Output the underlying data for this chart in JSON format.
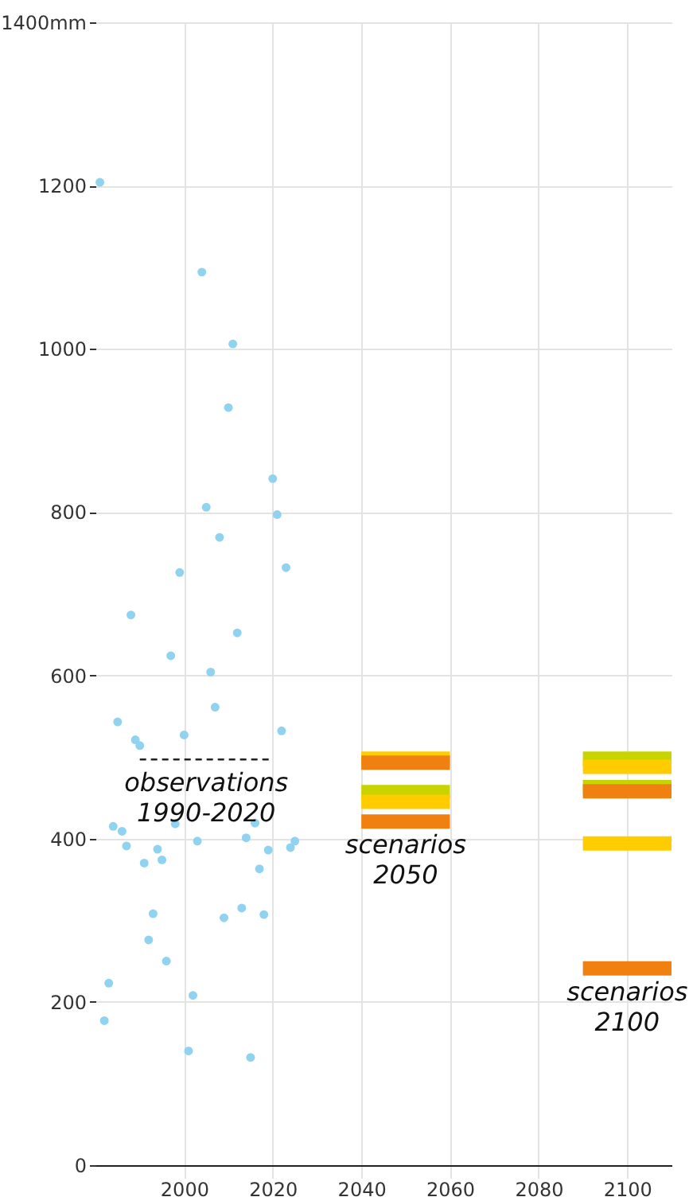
{
  "chart_data": {
    "type": "scatter",
    "xlim": [
      1980,
      2110
    ],
    "xticks": [
      2000,
      2020,
      2040,
      2060,
      2080,
      2100
    ],
    "ylim": [
      0,
      1400
    ],
    "yticks": [
      0,
      200,
      400,
      600,
      800,
      1000,
      1200,
      {
        "value": 1400,
        "label": "1400mm"
      }
    ],
    "grid": true,
    "series": [
      {
        "color": "#8fd3f0",
        "x": [
          1981,
          1982,
          1983,
          1984,
          1985,
          1986,
          1987,
          1988,
          1989,
          1990,
          1991,
          1992,
          1993,
          1994,
          1995,
          1996,
          1997,
          1998,
          1999,
          2000,
          2001,
          2002,
          2003,
          2004,
          2005,
          2006,
          2007,
          2008,
          2009,
          2010,
          2011,
          2012,
          2013,
          2014,
          2015,
          2016,
          2017,
          2018,
          2019,
          2020,
          2021,
          2022,
          2023,
          2024,
          2025
        ],
        "values": [
          1204,
          177,
          223,
          415,
          543,
          409,
          391,
          674,
          521,
          514,
          370,
          276,
          308,
          387,
          374,
          250,
          624,
          418,
          726,
          527,
          140,
          208,
          397,
          1094,
          806,
          604,
          561,
          769,
          303,
          928,
          1006,
          652,
          315,
          401,
          132,
          419,
          363,
          307,
          386,
          841,
          797,
          532,
          732,
          389,
          397
        ]
      },
      {
        "type": "line",
        "line_style": "dashed",
        "color": "#222222",
        "x": [
          1990,
          2020
        ],
        "values": [
          497,
          497
        ]
      },
      {
        "type": "line",
        "line_style": "solid",
        "color": "#ffcc00",
        "x": [
          2040,
          2060
        ],
        "values": [
          498,
          498
        ]
      },
      {
        "type": "line",
        "line_style": "solid",
        "color": "#f08010",
        "x": [
          2040,
          2060
        ],
        "values": [
          493,
          493
        ]
      },
      {
        "type": "line",
        "line_style": "solid",
        "color": "#c8d400",
        "x": [
          2040,
          2060
        ],
        "values": [
          457,
          457
        ]
      },
      {
        "type": "line",
        "line_style": "solid",
        "color": "#ffcc00",
        "x": [
          2040,
          2060
        ],
        "values": [
          445,
          445
        ]
      },
      {
        "type": "line",
        "line_style": "solid",
        "color": "#f08010",
        "x": [
          2040,
          2060
        ],
        "values": [
          421,
          421
        ]
      },
      {
        "type": "line",
        "line_style": "solid",
        "color": "#c8d400",
        "x": [
          2090,
          2110
        ],
        "values": [
          498,
          498
        ]
      },
      {
        "type": "line",
        "line_style": "solid",
        "color": "#ffcc00",
        "x": [
          2090,
          2110
        ],
        "values": [
          488,
          488
        ]
      },
      {
        "type": "line",
        "line_style": "solid",
        "color": "#c8d400",
        "x": [
          2090,
          2110
        ],
        "values": [
          463,
          463
        ]
      },
      {
        "type": "line",
        "line_style": "solid",
        "color": "#f08010",
        "x": [
          2090,
          2110
        ],
        "values": [
          458,
          458
        ]
      },
      {
        "type": "line",
        "line_style": "solid",
        "color": "#ffcc00",
        "x": [
          2090,
          2110
        ],
        "values": [
          394,
          394
        ]
      },
      {
        "type": "line",
        "line_style": "solid",
        "color": "#f08010",
        "x": [
          2090,
          2110
        ],
        "values": [
          241,
          241
        ]
      }
    ],
    "annotations": [
      {
        "text": "observations 1990-2020",
        "x": 2005,
        "y": 497
      },
      {
        "text": "scenarios 2050",
        "x": 2050,
        "y": 421
      },
      {
        "text": "scenarios 2100",
        "x": 2100,
        "y": 241
      }
    ]
  }
}
